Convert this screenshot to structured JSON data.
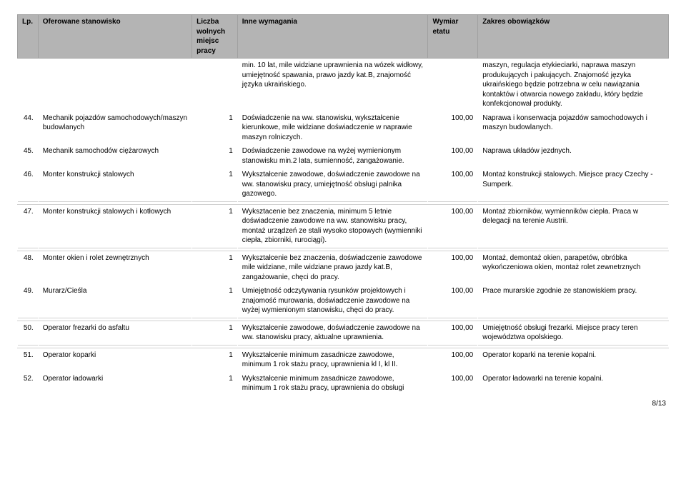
{
  "header": {
    "lp": "Lp.",
    "position": "Oferowane stanowisko",
    "vacancies": "Liczba wolnych\nmiejsc pracy",
    "requirements": "Inne wymagania",
    "dimension": "Wymiar etatu",
    "duties": "Zakres obowiązków"
  },
  "rows": [
    {
      "lp": "",
      "position": "",
      "vacancies": "",
      "requirements": "min. 10 lat, mile widziane uprawnienia na wózek widłowy, umiejętność spawania, prawo jazdy kat.B, znajomość języka ukraińskiego.",
      "dimension": "",
      "duties": "maszyn, regulacja etykieciarki, naprawa maszyn produkujących i pakujących. Znajomość języka ukraińskiego będzie potrzebna  w celu nawiązania kontaktów i otwarcia nowego zakładu, który będzie konfekcjonował produkty."
    },
    {
      "lp": "44.",
      "position": "Mechanik pojazdów samochodowych/maszyn budowlanych",
      "vacancies": "1",
      "requirements": "Doświadczenie na ww. stanowisku, wykształcenie kierunkowe, mile widziane doświadczenie w naprawie maszyn rolniczych.",
      "dimension": "100,00",
      "duties": "Naprawa i konserwacja pojazdów samochodowych i maszyn budowlanych."
    },
    {
      "lp": "45.",
      "position": "Mechanik samochodów ciężarowych",
      "vacancies": "1",
      "requirements": "Doświadczenie zawodowe na wyżej wymienionym stanowisku min.2 lata, sumienność, zangażowanie.",
      "dimension": "100,00",
      "duties": "Naprawa układów jezdnych."
    },
    {
      "lp": "46.",
      "position": "Monter konstrukcji stalowych",
      "vacancies": "1",
      "requirements": "Wykształcenie zawodowe, doświadczenie zawodowe na ww. stanowisku pracy, umiejętność obsługi palnika gazowego.",
      "dimension": "100,00",
      "duties": "Montaż konstrukcji stalowych. Miejsce pracy Czechy - Sumperk."
    }
  ],
  "rows2": [
    {
      "lp": "47.",
      "position": "Monter konstrukcji stalowych i kotłowych",
      "vacancies": "1",
      "requirements": "Wyksztacenie bez znaczenia, minimum 5 letnie doświadczenie zawodowe na ww. stanowisku pracy, montaż urządzeń ze stali wysoko stopowych (wymienniki ciepła, zbiorniki, rurociągi).",
      "dimension": "100,00",
      "duties": "Montaż zbiorników, wymienników ciepła. Praca w delegacji na terenie Austrii."
    }
  ],
  "rows3": [
    {
      "lp": "48.",
      "position": "Monter okien i rolet zewnętrznych",
      "vacancies": "1",
      "requirements": "Wykształcenie bez znaczenia, doświadczenie zawodowe mile widziane, mile widziane prawo jazdy kat.B, zangażowanie, chęci do pracy.",
      "dimension": "100,00",
      "duties": "Montaż, demontaż okien, parapetów, obróbka wykończeniowa okien, montaż rolet zewnetrznych"
    },
    {
      "lp": "49.",
      "position": "Murarz/Cieśla",
      "vacancies": "1",
      "requirements": "Umiejętność odczytywania rysunków projektowych i znajomość murowania, doświadczenie zawodowe na wyżej wymienionym stanowisku, chęci do pracy.",
      "dimension": "100,00",
      "duties": "Prace murarskie zgodnie ze stanowiskiem pracy."
    }
  ],
  "rows4": [
    {
      "lp": "50.",
      "position": "Operator frezarki do asfaltu",
      "vacancies": "1",
      "requirements": "Wykształcenie zawodowe, doświadczenie zawodowe na ww. stanowisku pracy, aktualne uprawnienia.",
      "dimension": "100,00",
      "duties": "Umiejętność obsługi frezarki. Miejsce pracy teren województwa opolskiego."
    }
  ],
  "rows5": [
    {
      "lp": "51.",
      "position": "Operator koparki",
      "vacancies": "1",
      "requirements": "Wykształcenie minimum zasadnicze zawodowe, minimum 1 rok stażu pracy, uprawnienia kl I, kl II.",
      "dimension": "100,00",
      "duties": "Operator koparki na terenie kopalni."
    },
    {
      "lp": "52.",
      "position": "Operator ładowarki",
      "vacancies": "1",
      "requirements": "Wykształcenie minimum zasadnicze zawodowe, minimum 1 rok stażu pracy, uprawnienia do obsługi",
      "dimension": "100,00",
      "duties": "Operator ładowarki na terenie kopalni."
    }
  ],
  "footer": "8/13",
  "style": {
    "header_bg": "#b4b4b4",
    "header_border": "#a0a0a0",
    "text_color": "#000000",
    "background": "#ffffff",
    "split_border": "#d0d0d0",
    "font_size_pt": 10
  }
}
